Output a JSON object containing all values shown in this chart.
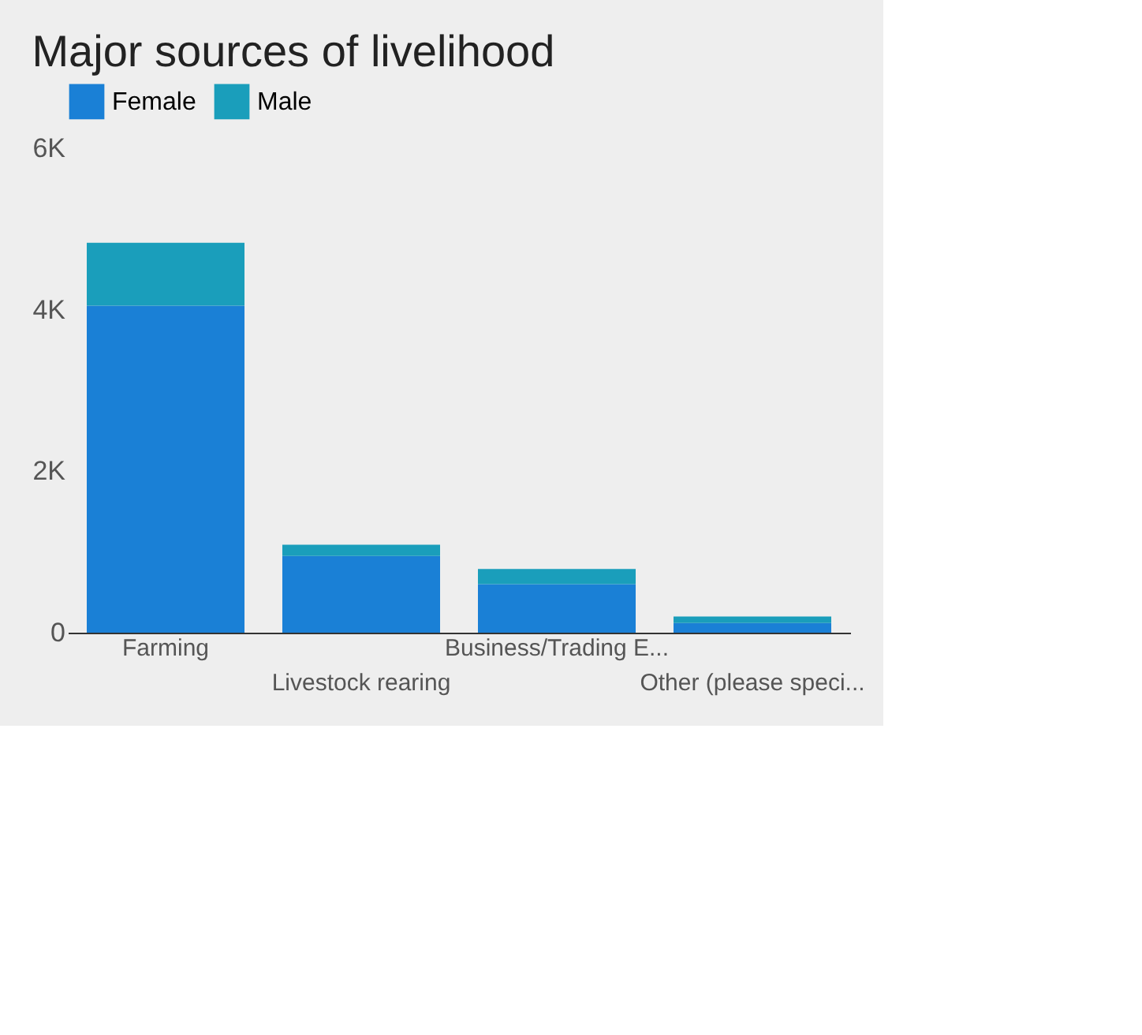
{
  "chart_data": {
    "type": "bar",
    "title": "Major sources of livelihood",
    "stacked": true,
    "categories": [
      "Farming",
      "Livestock rearing",
      "Business/Trading E...",
      "Other (please speci..."
    ],
    "series": [
      {
        "name": "Female",
        "color": "#1a80d6",
        "values": [
          4050,
          950,
          600,
          120
        ]
      },
      {
        "name": "Male",
        "color": "#1a9ebb",
        "values": [
          780,
          140,
          190,
          80
        ]
      }
    ],
    "ylim": [
      0,
      6000
    ],
    "yticks": [
      {
        "value": 0,
        "label": "0"
      },
      {
        "value": 2000,
        "label": "2K"
      },
      {
        "value": 4000,
        "label": "4K"
      },
      {
        "value": 6000,
        "label": "6K"
      }
    ],
    "grid": false,
    "legend": "top left"
  }
}
